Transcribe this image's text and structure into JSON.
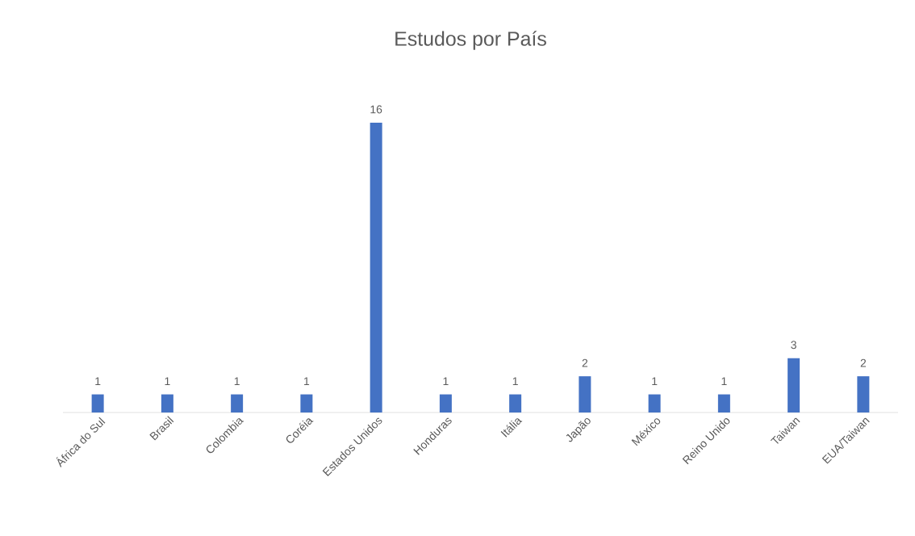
{
  "chart_data": {
    "type": "bar",
    "title": "Estudos por País",
    "categories": [
      "África do Sul",
      "Brasil",
      "Colombia",
      "Coréia",
      "Estados Unidos",
      "Honduras",
      "Itália",
      "Japão",
      "México",
      "Reino Unido",
      "Taiwan",
      "EUA/Taiwan"
    ],
    "values": [
      1,
      1,
      1,
      1,
      16,
      1,
      1,
      2,
      1,
      1,
      3,
      2
    ],
    "color": "#4472c4",
    "data_labels": true
  }
}
